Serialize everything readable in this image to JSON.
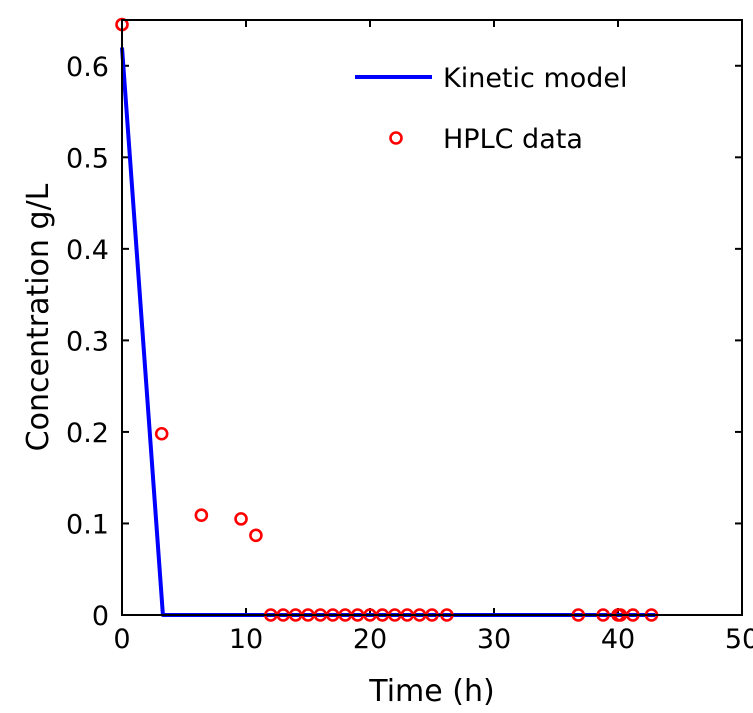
{
  "chart_data": {
    "type": "line",
    "title": "",
    "xlabel": "Time (h)",
    "ylabel": "Concentration g/L",
    "xlim": [
      0,
      50
    ],
    "ylim": [
      0,
      0.65
    ],
    "xticks": [
      0,
      10,
      20,
      30,
      40,
      50
    ],
    "xtick_labels": [
      "0",
      "10",
      "20",
      "30",
      "40",
      "50"
    ],
    "yticks": [
      0,
      0.1,
      0.2,
      0.3,
      0.4,
      0.5,
      0.6
    ],
    "ytick_labels": [
      "0",
      "0.1",
      "0.2",
      "0.3",
      "0.4",
      "0.5",
      "0.6"
    ],
    "grid": false,
    "legend_position": "top-right",
    "series": [
      {
        "name": "Kinetic model",
        "style": "line",
        "color": "#0000ff",
        "x": [
          0,
          3.3,
          43
        ],
        "y": [
          0.62,
          0,
          0
        ]
      },
      {
        "name": "HPLC data",
        "style": "marker",
        "marker": "open-circle",
        "color": "#ff0000",
        "x": [
          0,
          3.2,
          6.4,
          9.6,
          10.8,
          12,
          13,
          14,
          15,
          16,
          17,
          18,
          19,
          20,
          21,
          22,
          23,
          24,
          25,
          26.2,
          36.8,
          38.8,
          40,
          40.2,
          41.2,
          42.7
        ],
        "y": [
          0.645,
          0.198,
          0.109,
          0.105,
          0.087,
          0,
          0,
          0,
          0,
          0,
          0,
          0,
          0,
          0,
          0,
          0,
          0,
          0,
          0,
          0,
          0,
          0,
          0,
          0,
          0,
          0
        ]
      }
    ]
  }
}
